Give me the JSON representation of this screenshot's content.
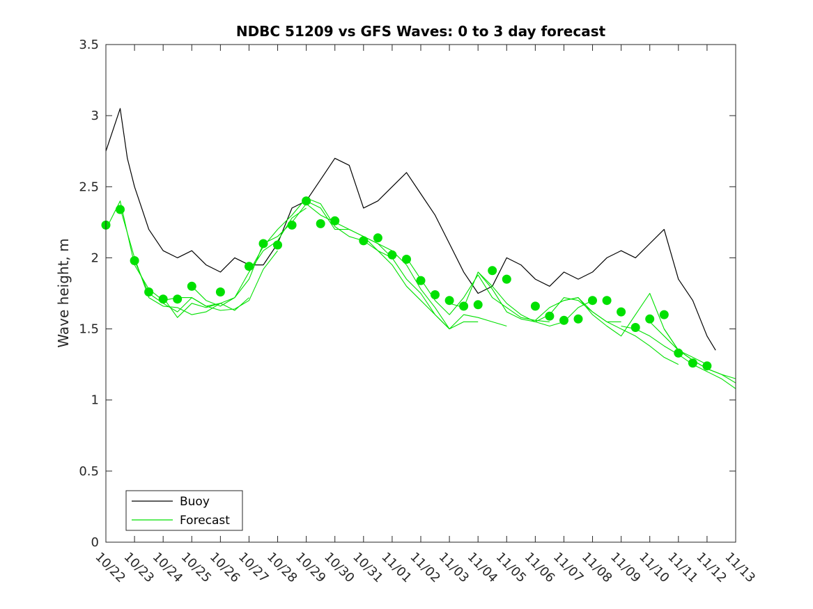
{
  "chart_data": {
    "type": "line",
    "title": "NDBC 51209 vs GFS Waves: 0 to 3 day forecast",
    "xlabel": "",
    "ylabel": "Wave height, m",
    "xlim": [
      0,
      22
    ],
    "ylim": [
      0,
      3.5
    ],
    "yticks": [
      0,
      0.5,
      1,
      1.5,
      2,
      2.5,
      3,
      3.5
    ],
    "ytick_labels": [
      "0",
      "0.5",
      "1",
      "1.5",
      "2",
      "2.5",
      "3",
      "3.5"
    ],
    "xticks": [
      0,
      1,
      2,
      3,
      4,
      5,
      6,
      7,
      8,
      9,
      10,
      11,
      12,
      13,
      14,
      15,
      16,
      17,
      18,
      19,
      20,
      21,
      22
    ],
    "xtick_labels": [
      "10/22",
      "10/23",
      "10/24",
      "10/25",
      "10/26",
      "10/27",
      "10/28",
      "10/29",
      "10/30",
      "10/31",
      "11/01",
      "11/02",
      "11/03",
      "11/04",
      "11/05",
      "11/06",
      "11/07",
      "11/08",
      "11/09",
      "11/10",
      "11/11",
      "11/12",
      "11/13"
    ],
    "grid": false,
    "legend": {
      "location": "bottom-left",
      "entries": [
        "Buoy",
        "Forecast"
      ]
    },
    "colors": {
      "buoy": "#000000",
      "forecast": "#00e000",
      "axes": "#262626"
    },
    "series": [
      {
        "name": "Buoy",
        "x": [
          0,
          0.5,
          0.75,
          1,
          1.25,
          1.5,
          2,
          2.5,
          3,
          3.5,
          4,
          4.5,
          5,
          5.5,
          6,
          6.5,
          7,
          7.5,
          8,
          8.5,
          9,
          9.5,
          10,
          10.5,
          11,
          11.5,
          12,
          12.5,
          13,
          13.5,
          14,
          14.5,
          15,
          15.5,
          16,
          16.5,
          17,
          17.5,
          18,
          18.5,
          19,
          19.5,
          20,
          20.5,
          21,
          21.3
        ],
        "y": [
          2.75,
          3.05,
          2.7,
          2.5,
          2.35,
          2.2,
          2.05,
          2.0,
          2.05,
          1.95,
          1.9,
          2.0,
          1.95,
          1.95,
          2.1,
          2.35,
          2.4,
          2.55,
          2.7,
          2.65,
          2.35,
          2.4,
          2.5,
          2.6,
          2.45,
          2.3,
          2.1,
          1.9,
          1.75,
          1.8,
          2.0,
          1.95,
          1.85,
          1.8,
          1.9,
          1.85,
          1.9,
          2.0,
          2.05,
          2.0,
          2.1,
          2.2,
          1.85,
          1.7,
          1.45,
          1.35
        ]
      },
      {
        "name": "Forecast run 1",
        "x": [
          0,
          0.5,
          1,
          1.5,
          2,
          2.5,
          3,
          3.5,
          4
        ],
        "y": [
          2.2,
          2.4,
          1.95,
          1.78,
          1.7,
          1.72,
          1.72,
          1.66,
          1.68
        ]
      },
      {
        "name": "Forecast run 2",
        "x": [
          0.5,
          1,
          1.5,
          2,
          2.5,
          3,
          3.5,
          4,
          4.5,
          5
        ],
        "y": [
          2.35,
          2.0,
          1.72,
          1.66,
          1.65,
          1.6,
          1.62,
          1.68,
          1.63,
          1.72
        ]
      },
      {
        "name": "Forecast run 3",
        "x": [
          1,
          1.5,
          2,
          2.5,
          3,
          3.5,
          4,
          4.5,
          5,
          5.5,
          6
        ],
        "y": [
          1.98,
          1.75,
          1.68,
          1.62,
          1.72,
          1.66,
          1.63,
          1.64,
          1.7,
          1.92,
          2.05
        ]
      },
      {
        "name": "Forecast run 4",
        "x": [
          2,
          2.5,
          3,
          3.5,
          4,
          4.5,
          5,
          5.5,
          6,
          6.5,
          7
        ],
        "y": [
          1.72,
          1.58,
          1.68,
          1.65,
          1.68,
          1.72,
          1.9,
          2.05,
          2.12,
          2.28,
          2.35
        ]
      },
      {
        "name": "Forecast run 5",
        "x": [
          3,
          3.5,
          4,
          4.5,
          5,
          5.5,
          6,
          6.5,
          7,
          7.5,
          8
        ],
        "y": [
          1.8,
          1.7,
          1.66,
          1.72,
          1.85,
          2.1,
          2.15,
          2.25,
          2.38,
          2.3,
          2.25
        ]
      },
      {
        "name": "Forecast run 6",
        "x": [
          5,
          5.5,
          6,
          6.5,
          7,
          7.5,
          8,
          8.5,
          9,
          9.5,
          10
        ],
        "y": [
          1.9,
          2.08,
          2.2,
          2.3,
          2.42,
          2.38,
          2.22,
          2.15,
          2.12,
          2.05,
          2.0
        ]
      },
      {
        "name": "Forecast run 7",
        "x": [
          7,
          7.5,
          8,
          8.5,
          9,
          9.5,
          10,
          10.5,
          11,
          11.5,
          12
        ],
        "y": [
          2.4,
          2.35,
          2.2,
          2.2,
          2.15,
          2.1,
          2.0,
          1.85,
          1.75,
          1.6,
          1.5
        ]
      },
      {
        "name": "Forecast run 8",
        "x": [
          8,
          8.5,
          9,
          9.5,
          10,
          10.5,
          11,
          11.5,
          12,
          12.5,
          13
        ],
        "y": [
          2.25,
          2.2,
          2.15,
          2.05,
          1.95,
          1.8,
          1.7,
          1.6,
          1.5,
          1.55,
          1.55
        ]
      },
      {
        "name": "Forecast run 9",
        "x": [
          9,
          9.5,
          10,
          10.5,
          11,
          11.5,
          12,
          12.5,
          13,
          13.5,
          14
        ],
        "y": [
          2.15,
          2.1,
          2.05,
          1.95,
          1.78,
          1.65,
          1.5,
          1.6,
          1.58,
          1.55,
          1.52
        ]
      },
      {
        "name": "Forecast run 10",
        "x": [
          10.5,
          11,
          11.5,
          12,
          12.5,
          13,
          13.5,
          14,
          14.5,
          15,
          15.5
        ],
        "y": [
          2.0,
          1.85,
          1.7,
          1.6,
          1.72,
          1.88,
          1.72,
          1.65,
          1.58,
          1.56,
          1.55
        ]
      },
      {
        "name": "Forecast run 11",
        "x": [
          12,
          12.5,
          13,
          13.5,
          14,
          14.5,
          15,
          15.5,
          16,
          16.5,
          17
        ],
        "y": [
          1.68,
          1.65,
          1.9,
          1.8,
          1.68,
          1.6,
          1.55,
          1.52,
          1.55,
          1.65,
          1.7
        ]
      },
      {
        "name": "Forecast run 12",
        "x": [
          13,
          13.5,
          14,
          14.5,
          15,
          15.5,
          16,
          16.5,
          17,
          17.5,
          18
        ],
        "y": [
          1.9,
          1.78,
          1.62,
          1.57,
          1.55,
          1.6,
          1.72,
          1.7,
          1.62,
          1.55,
          1.55
        ]
      },
      {
        "name": "Forecast run 13",
        "x": [
          15,
          15.5,
          16,
          16.5,
          17,
          17.5,
          18,
          18.5,
          19,
          19.5,
          20
        ],
        "y": [
          1.56,
          1.65,
          1.7,
          1.72,
          1.62,
          1.55,
          1.5,
          1.45,
          1.38,
          1.3,
          1.25
        ]
      },
      {
        "name": "Forecast run 14",
        "x": [
          16,
          16.5,
          17,
          17.5,
          18,
          18.5,
          19,
          19.5,
          20,
          20.5,
          21
        ],
        "y": [
          1.7,
          1.72,
          1.6,
          1.52,
          1.45,
          1.6,
          1.75,
          1.5,
          1.35,
          1.3,
          1.25
        ]
      },
      {
        "name": "Forecast run 15",
        "x": [
          18,
          18.5,
          19,
          19.5,
          20,
          20.5,
          21,
          21.5,
          22
        ],
        "y": [
          1.52,
          1.5,
          1.45,
          1.38,
          1.32,
          1.25,
          1.2,
          1.15,
          1.08
        ]
      },
      {
        "name": "Forecast run 16",
        "x": [
          19,
          19.5,
          20,
          20.5,
          21,
          21.5,
          22
        ],
        "y": [
          1.55,
          1.45,
          1.35,
          1.28,
          1.22,
          1.18,
          1.15
        ]
      },
      {
        "name": "Forecast run 17",
        "x": [
          19.5,
          20,
          20.5,
          21,
          21.5,
          22
        ],
        "y": [
          1.5,
          1.35,
          1.28,
          1.22,
          1.18,
          1.12
        ]
      }
    ],
    "forecast_markers": {
      "x": [
        0,
        0.5,
        1,
        1.5,
        2,
        2.5,
        3,
        4,
        5,
        5.5,
        6,
        6.5,
        7,
        7.5,
        8,
        9,
        9.5,
        10,
        10.5,
        11,
        11.5,
        12,
        12.5,
        13,
        13.5,
        14,
        15,
        15.5,
        16,
        16.5,
        17,
        17.5,
        18,
        18.5,
        19,
        19.5,
        20,
        20.5,
        21
      ],
      "y": [
        2.23,
        2.34,
        1.98,
        1.76,
        1.71,
        1.71,
        1.8,
        1.76,
        1.94,
        2.1,
        2.09,
        2.23,
        2.4,
        2.24,
        2.26,
        2.12,
        2.14,
        2.02,
        1.99,
        1.84,
        1.74,
        1.7,
        1.66,
        1.67,
        1.91,
        1.85,
        1.66,
        1.59,
        1.56,
        1.57,
        1.7,
        1.7,
        1.62,
        1.51,
        1.57,
        1.6,
        1.33,
        1.26,
        1.24
      ]
    }
  }
}
